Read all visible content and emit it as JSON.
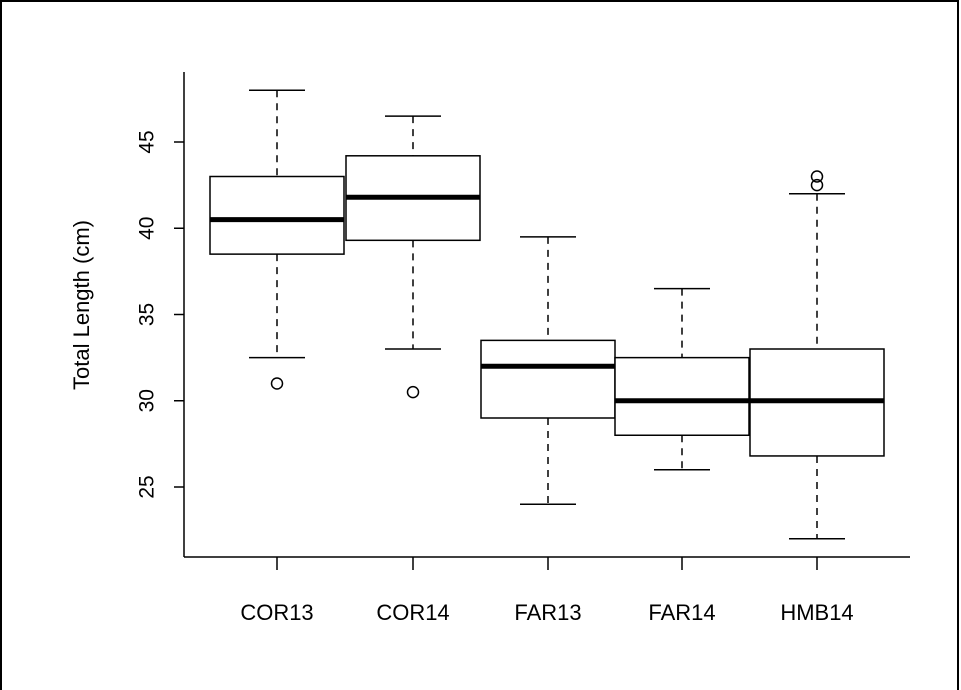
{
  "chart_data": {
    "type": "boxplot",
    "title": "",
    "xlabel": "",
    "ylabel": "Total Length (cm)",
    "ylim": [
      21,
      49
    ],
    "yticks": [
      25,
      30,
      35,
      40,
      45
    ],
    "ytick_labels": [
      "25",
      "30",
      "35",
      "40",
      "45"
    ],
    "grid": false,
    "categories": [
      "COR13",
      "COR14",
      "FAR13",
      "FAR14",
      "HMB14"
    ],
    "boxes": [
      {
        "label": "COR13",
        "whisker_low": 32.5,
        "q1": 38.5,
        "median": 40.5,
        "q3": 43.0,
        "whisker_high": 48.0,
        "outliers": [
          31.0
        ]
      },
      {
        "label": "COR14",
        "whisker_low": 33.0,
        "q1": 39.3,
        "median": 41.8,
        "q3": 44.2,
        "whisker_high": 46.5,
        "outliers": [
          30.5
        ]
      },
      {
        "label": "FAR13",
        "whisker_low": 24.0,
        "q1": 29.0,
        "median": 32.0,
        "q3": 33.5,
        "whisker_high": 39.5,
        "outliers": []
      },
      {
        "label": "FAR14",
        "whisker_low": 26.0,
        "q1": 28.0,
        "median": 30.0,
        "q3": 32.5,
        "whisker_high": 36.5,
        "outliers": []
      },
      {
        "label": "HMB14",
        "whisker_low": 22.0,
        "q1": 26.8,
        "median": 30.0,
        "q3": 33.0,
        "whisker_high": 42.0,
        "outliers": [
          42.5,
          43.0
        ]
      }
    ]
  }
}
